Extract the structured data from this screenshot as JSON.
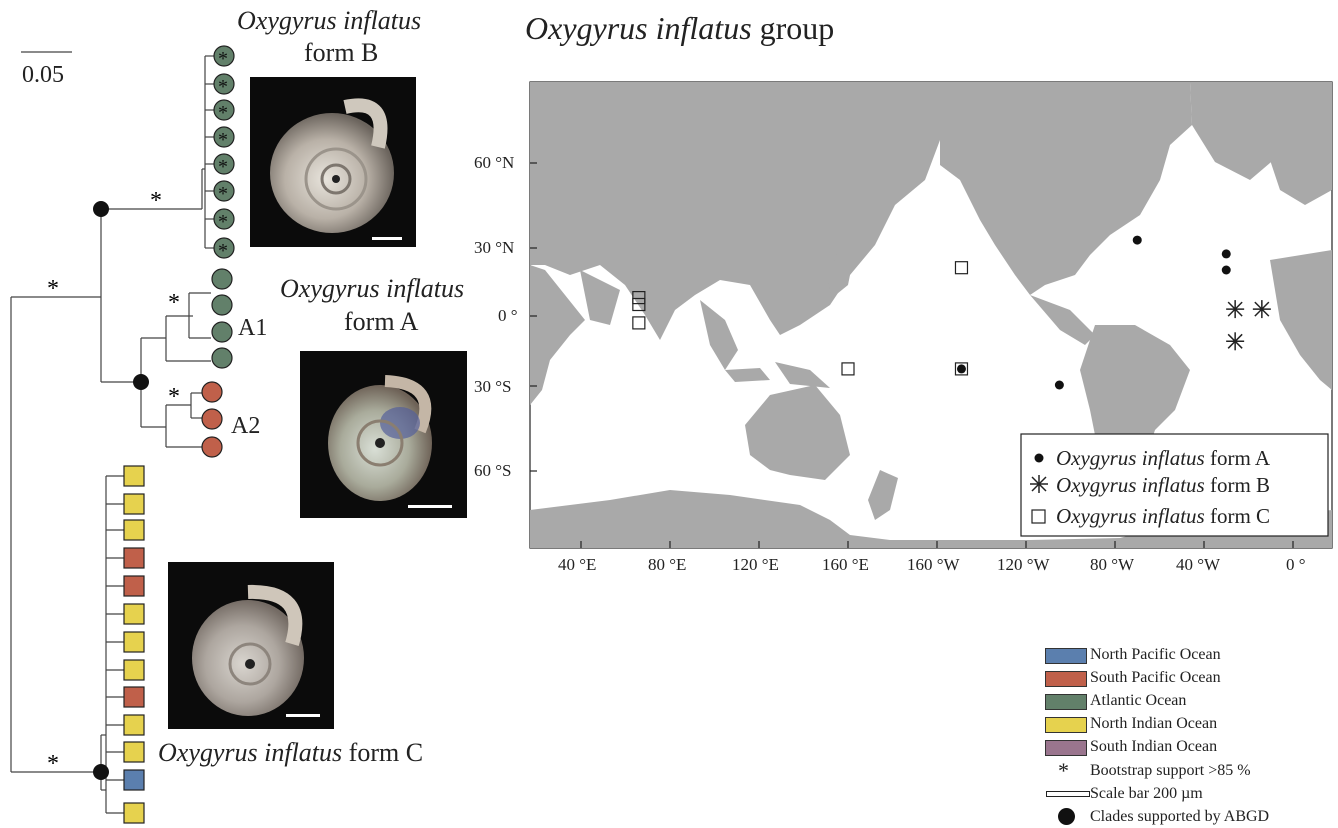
{
  "tree": {
    "scale_bar_label": "0.05",
    "bootstrap_mark": "*",
    "clade_labels": {
      "a1": "A1",
      "a2": "A2"
    },
    "form_b_tips": [
      "Atlantic Ocean",
      "Atlantic Ocean",
      "Atlantic Ocean",
      "Atlantic Ocean",
      "Atlantic Ocean",
      "Atlantic Ocean",
      "Atlantic Ocean",
      "Atlantic Ocean"
    ],
    "a1_tips": [
      "Atlantic Ocean",
      "Atlantic Ocean",
      "Atlantic Ocean",
      "Atlantic Ocean"
    ],
    "a2_tips": [
      "South Pacific Ocean",
      "South Pacific Ocean",
      "South Pacific Ocean"
    ],
    "form_c_tips": [
      "North Indian Ocean",
      "North Indian Ocean",
      "North Indian Ocean",
      "South Pacific Ocean",
      "South Pacific Ocean",
      "North Indian Ocean",
      "North Indian Ocean",
      "North Indian Ocean",
      "South Pacific Ocean",
      "North Indian Ocean",
      "North Indian Ocean",
      "North Pacific Ocean",
      "North Indian Ocean"
    ]
  },
  "photo_labels": {
    "form_b": {
      "species": "Oxygyrus inflatus",
      "form": "form B"
    },
    "form_a": {
      "species": "Oxygyrus inflatus",
      "form": "form A"
    },
    "form_c": {
      "species": "Oxygyrus inflatus",
      "form": "form C"
    }
  },
  "map": {
    "title_species": "Oxygyrus inflatus",
    "title_suffix": "group",
    "lat_labels": [
      "60 °N",
      "30 °N",
      "0 °",
      "30 °S",
      "60 °S"
    ],
    "lon_labels": [
      "40 °E",
      "80 °E",
      "120 °E",
      "160 °E",
      "160 °W",
      "120 °W",
      "80 °W",
      "40 °W",
      "0 °"
    ],
    "legend": [
      {
        "symbol": "dot",
        "species": "Oxygyrus inflatus",
        "form": "form A"
      },
      {
        "symbol": "star",
        "species": "Oxygyrus inflatus",
        "form": "form B"
      },
      {
        "symbol": "square",
        "species": "Oxygyrus inflatus",
        "form": "form C"
      }
    ],
    "records": {
      "form_a": [
        {
          "lon": -70,
          "lat": 33
        },
        {
          "lon": -30,
          "lat": 27
        },
        {
          "lon": -30,
          "lat": 20
        },
        {
          "lon": -149,
          "lat": -23
        },
        {
          "lon": -105,
          "lat": -30
        }
      ],
      "form_b": [
        {
          "lon": -26,
          "lat": 3
        },
        {
          "lon": -14,
          "lat": 3
        },
        {
          "lon": -26,
          "lat": -11
        }
      ],
      "form_c": [
        {
          "lon": 66,
          "lat": 8
        },
        {
          "lon": 66,
          "lat": 5
        },
        {
          "lon": 66,
          "lat": -3
        },
        {
          "lon": -149,
          "lat": 21
        },
        {
          "lon": 160,
          "lat": -23
        },
        {
          "lon": -149,
          "lat": -23
        }
      ]
    }
  },
  "key": {
    "colors": [
      {
        "label": "North Pacific Ocean",
        "color": "#5b7fae"
      },
      {
        "label": "South Pacific Ocean",
        "color": "#c0604a"
      },
      {
        "label": "Atlantic Ocean",
        "color": "#62806a"
      },
      {
        "label": "North Indian Ocean",
        "color": "#e6d24e"
      },
      {
        "label": "South Indian Ocean",
        "color": "#9a758e"
      }
    ],
    "symbols": [
      {
        "mark": "*",
        "label": "Bootstrap support >85 %"
      },
      {
        "mark": "scale",
        "label": "Scale bar 200 µm"
      },
      {
        "mark": "dot",
        "label": "Clades supported by ABGD"
      }
    ]
  }
}
